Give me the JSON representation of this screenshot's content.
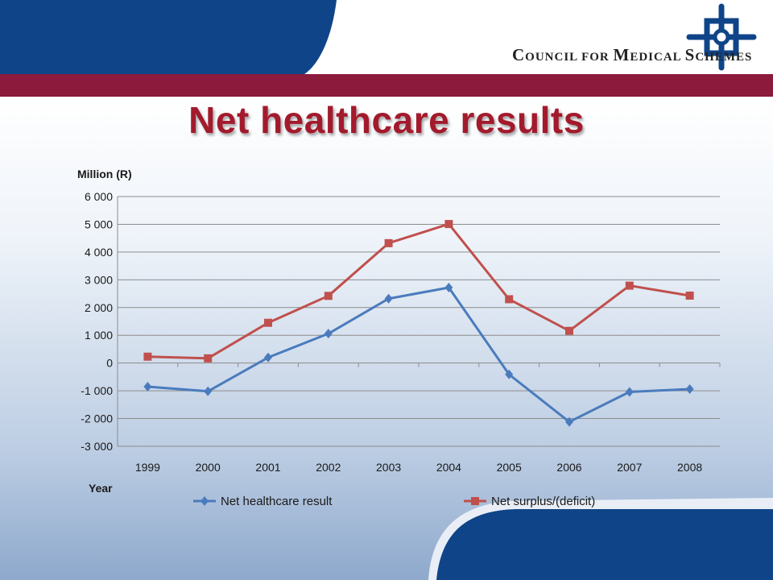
{
  "slide": {
    "title": "Net healthcare results",
    "brand": {
      "name": "Council for Medical Schemes",
      "logo_icon": "cms-cross-logo-icon",
      "colors": {
        "navy": "#0f4488",
        "maroon": "#8b1a3c",
        "title": "#a31a2c"
      }
    }
  },
  "chart_data": {
    "type": "line",
    "title": "",
    "xlabel": "Year",
    "ylabel": "Million (R)",
    "categories": [
      "1999",
      "2000",
      "2001",
      "2002",
      "2003",
      "2004",
      "2005",
      "2006",
      "2007",
      "2008"
    ],
    "ylim": [
      -3000,
      6000
    ],
    "ytick_step": 1000,
    "ytick_labels": [
      "-3 000",
      "-2 000",
      "-1 000",
      "0",
      "1 000",
      "2 000",
      "3 000",
      "4 000",
      "5 000",
      "6 000"
    ],
    "grid": true,
    "legend": "bottom",
    "series": [
      {
        "name": "Net healthcare result",
        "color": "#4a7bbd",
        "marker": "diamond",
        "values": [
          -850,
          -1020,
          200,
          1060,
          2320,
          2720,
          -410,
          -2120,
          -1040,
          -940
        ]
      },
      {
        "name": "Net surplus/(deficit)",
        "color": "#c0504d",
        "marker": "square",
        "values": [
          230,
          170,
          1450,
          2420,
          4320,
          5010,
          2300,
          1160,
          2790,
          2430
        ]
      }
    ]
  }
}
